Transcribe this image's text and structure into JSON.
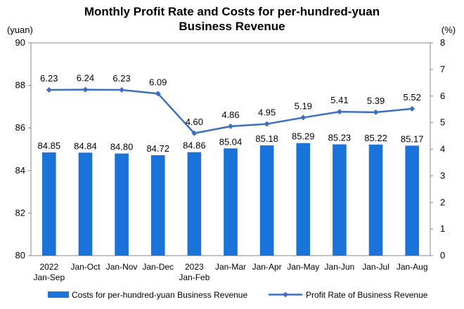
{
  "chart_data": {
    "type": "bar+line",
    "title_lines": [
      "Monthly Profit Rate and Costs for per-hundred-yuan",
      "Business Revenue"
    ],
    "left_unit": "(yuan)",
    "right_unit": "(%)",
    "categories": [
      [
        "2022",
        "Jan-Sep"
      ],
      [
        "Jan-Oct"
      ],
      [
        "Jan-Nov"
      ],
      [
        "Jan-Dec"
      ],
      [
        "2023",
        "Jan-Feb"
      ],
      [
        "Jan-Mar"
      ],
      [
        "Jan-Apr"
      ],
      [
        "Jan-May"
      ],
      [
        "Jan-Jun"
      ],
      [
        "Jan-Jul"
      ],
      [
        "Jan-Aug"
      ]
    ],
    "left_axis": {
      "min": 80,
      "max": 90,
      "step": 2
    },
    "right_axis": {
      "min": 0,
      "max": 8,
      "step": 1
    },
    "grid": false,
    "legend_position": "bottom",
    "series": [
      {
        "name": "Costs for per-hundred-yuan Business Revenue",
        "type": "bar",
        "axis": "left",
        "color": "#1a73d9",
        "values": [
          84.85,
          84.84,
          84.8,
          84.72,
          84.86,
          85.04,
          85.18,
          85.29,
          85.23,
          85.22,
          85.17
        ],
        "labels": [
          "84.85",
          "84.84",
          "84.80",
          "84.72",
          "84.86",
          "85.04",
          "85.18",
          "85.29",
          "85.23",
          "85.22",
          "85.17"
        ]
      },
      {
        "name": "Profit Rate of Business Revenue",
        "type": "line",
        "axis": "right",
        "color": "#3c6fc0",
        "values": [
          6.23,
          6.24,
          6.23,
          6.09,
          4.6,
          4.86,
          4.95,
          5.19,
          5.41,
          5.39,
          5.52
        ],
        "labels": [
          "6.23",
          "6.24",
          "6.23",
          "6.09",
          "4.60",
          "4.86",
          "4.95",
          "5.19",
          "5.41",
          "5.39",
          "5.52"
        ]
      }
    ]
  }
}
